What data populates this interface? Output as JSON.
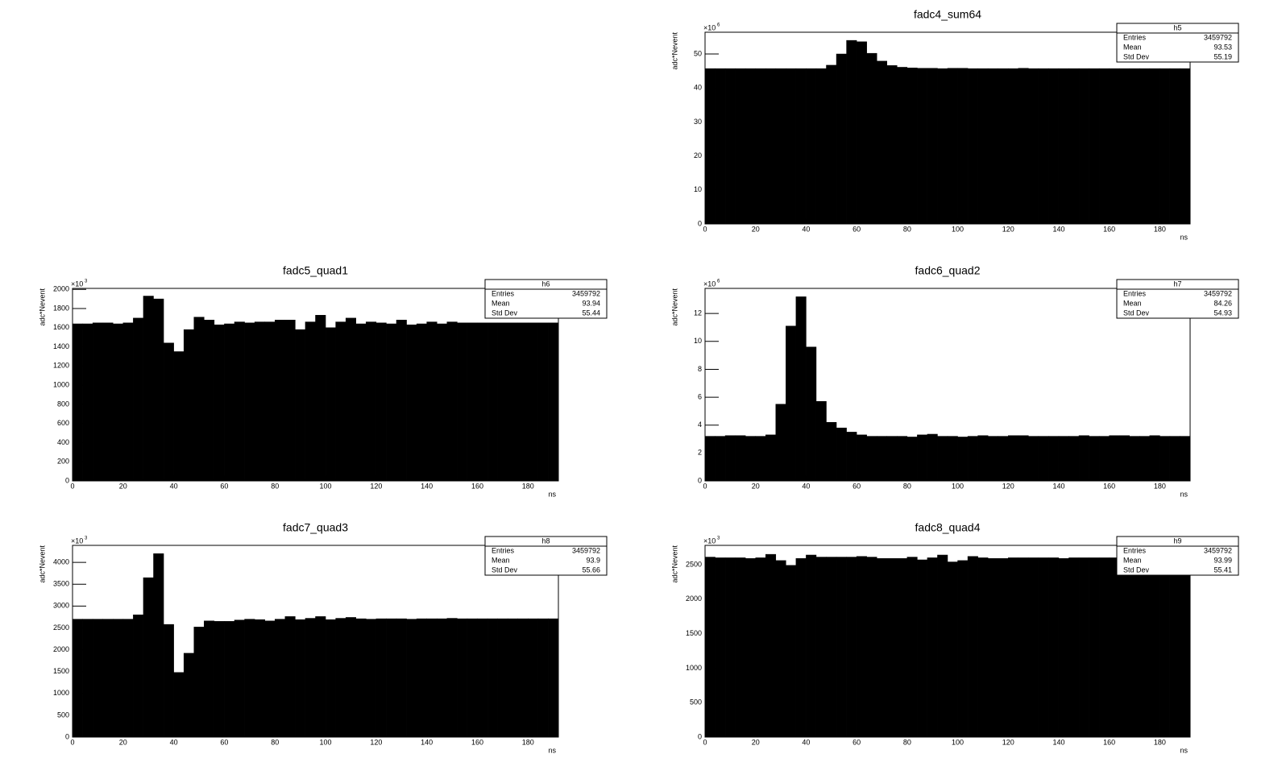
{
  "chart_data": [
    {
      "type": "histogram",
      "title": "fadc4_sum64",
      "xlabel": "ns",
      "ylabel": "adc*Nevent",
      "y_scale": {
        "base": "×10",
        "exponent": "6"
      },
      "color": "#000000",
      "bins": [
        0,
        4,
        8,
        12,
        16,
        20,
        24,
        28,
        32,
        36,
        40,
        44,
        48,
        52,
        56,
        60,
        64,
        68,
        72,
        76,
        80,
        84,
        88,
        92,
        96,
        100,
        104,
        108,
        112,
        116,
        120,
        124,
        128,
        132,
        136,
        140,
        144,
        148,
        152,
        156,
        160,
        164,
        168,
        172,
        176,
        180,
        184,
        188,
        192
      ],
      "values": [
        45.7,
        45.7,
        45.7,
        45.7,
        45.7,
        45.7,
        45.7,
        45.7,
        45.7,
        45.7,
        45.7,
        45.7,
        46.7,
        50.0,
        54.0,
        53.6,
        50.2,
        47.9,
        46.6,
        46.1,
        45.9,
        45.8,
        45.8,
        45.7,
        45.8,
        45.8,
        45.7,
        45.7,
        45.7,
        45.7,
        45.7,
        45.8,
        45.7,
        45.7,
        45.7,
        45.7,
        45.7,
        45.7,
        45.7,
        45.7,
        45.7,
        45.7,
        45.7,
        45.7,
        45.7,
        45.7,
        45.7,
        45.7
      ],
      "xlim": [
        0,
        192
      ],
      "xticks": [
        0,
        20,
        40,
        60,
        80,
        100,
        120,
        140,
        160,
        180
      ],
      "ylim": [
        0,
        56.4
      ],
      "yticks": [
        0,
        10,
        20,
        30,
        40,
        50
      ],
      "stats": {
        "title": "h5",
        "rows": [
          {
            "label": "Entries",
            "value": 3459792
          },
          {
            "label": "Mean",
            "value": 93.53
          },
          {
            "label": "Std Dev",
            "value": 55.19
          }
        ]
      }
    },
    {
      "type": "histogram",
      "title": "fadc5_quad1",
      "xlabel": "ns",
      "ylabel": "adc*Nevent",
      "y_scale": {
        "base": "×10",
        "exponent": "3"
      },
      "color": "#000000",
      "bins": [
        0,
        4,
        8,
        12,
        16,
        20,
        24,
        28,
        32,
        36,
        40,
        44,
        48,
        52,
        56,
        60,
        64,
        68,
        72,
        76,
        80,
        84,
        88,
        92,
        96,
        100,
        104,
        108,
        112,
        116,
        120,
        124,
        128,
        132,
        136,
        140,
        144,
        148,
        152,
        156,
        160,
        164,
        168,
        172,
        176,
        180,
        184,
        188,
        192
      ],
      "values": [
        1640,
        1640,
        1650,
        1650,
        1640,
        1650,
        1700,
        1930,
        1900,
        1440,
        1350,
        1580,
        1710,
        1680,
        1630,
        1640,
        1660,
        1650,
        1660,
        1660,
        1680,
        1680,
        1580,
        1660,
        1730,
        1600,
        1660,
        1700,
        1640,
        1660,
        1650,
        1640,
        1680,
        1630,
        1640,
        1660,
        1640,
        1660,
        1650,
        1650,
        1650,
        1650,
        1650,
        1650,
        1650,
        1650,
        1650,
        1650
      ],
      "xlim": [
        0,
        192
      ],
      "xticks": [
        0,
        20,
        40,
        60,
        80,
        100,
        120,
        140,
        160,
        180
      ],
      "ylim": [
        0,
        2010
      ],
      "yticks": [
        0,
        200,
        400,
        600,
        800,
        1000,
        1200,
        1400,
        1600,
        1800,
        2000
      ],
      "stats": {
        "title": "h6",
        "rows": [
          {
            "label": "Entries",
            "value": 3459792
          },
          {
            "label": "Mean",
            "value": 93.94
          },
          {
            "label": "Std Dev",
            "value": 55.44
          }
        ]
      }
    },
    {
      "type": "histogram",
      "title": "fadc6_quad2",
      "xlabel": "ns",
      "ylabel": "adc*Nevent",
      "y_scale": {
        "base": "×10",
        "exponent": "6"
      },
      "color": "#000000",
      "bins": [
        0,
        4,
        8,
        12,
        16,
        20,
        24,
        28,
        32,
        36,
        40,
        44,
        48,
        52,
        56,
        60,
        64,
        68,
        72,
        76,
        80,
        84,
        88,
        92,
        96,
        100,
        104,
        108,
        112,
        116,
        120,
        124,
        128,
        132,
        136,
        140,
        144,
        148,
        152,
        156,
        160,
        164,
        168,
        172,
        176,
        180,
        184,
        188,
        192
      ],
      "values": [
        3.2,
        3.2,
        3.25,
        3.25,
        3.2,
        3.2,
        3.3,
        5.5,
        11.1,
        13.2,
        9.6,
        5.7,
        4.2,
        3.8,
        3.5,
        3.3,
        3.2,
        3.2,
        3.2,
        3.2,
        3.15,
        3.3,
        3.35,
        3.2,
        3.2,
        3.15,
        3.2,
        3.25,
        3.2,
        3.2,
        3.25,
        3.25,
        3.2,
        3.2,
        3.2,
        3.2,
        3.2,
        3.25,
        3.2,
        3.2,
        3.25,
        3.25,
        3.2,
        3.2,
        3.25,
        3.2,
        3.2,
        3.2
      ],
      "xlim": [
        0,
        192
      ],
      "xticks": [
        0,
        20,
        40,
        60,
        80,
        100,
        120,
        140,
        160,
        180
      ],
      "ylim": [
        0,
        13.8
      ],
      "yticks": [
        0,
        2,
        4,
        6,
        8,
        10,
        12
      ],
      "stats": {
        "title": "h7",
        "rows": [
          {
            "label": "Entries",
            "value": 3459792
          },
          {
            "label": "Mean",
            "value": 84.26
          },
          {
            "label": "Std Dev",
            "value": 54.93
          }
        ]
      }
    },
    {
      "type": "histogram",
      "title": "fadc7_quad3",
      "xlabel": "ns",
      "ylabel": "adc*Nevent",
      "y_scale": {
        "base": "×10",
        "exponent": "3"
      },
      "color": "#000000",
      "bins": [
        0,
        4,
        8,
        12,
        16,
        20,
        24,
        28,
        32,
        36,
        40,
        44,
        48,
        52,
        56,
        60,
        64,
        68,
        72,
        76,
        80,
        84,
        88,
        92,
        96,
        100,
        104,
        108,
        112,
        116,
        120,
        124,
        128,
        132,
        136,
        140,
        144,
        148,
        152,
        156,
        160,
        164,
        168,
        172,
        176,
        180,
        184,
        188,
        192
      ],
      "values": [
        2700,
        2700,
        2700,
        2700,
        2700,
        2700,
        2800,
        3650,
        4200,
        2580,
        1480,
        1920,
        2520,
        2660,
        2650,
        2650,
        2680,
        2700,
        2690,
        2660,
        2700,
        2760,
        2690,
        2720,
        2760,
        2690,
        2720,
        2740,
        2710,
        2700,
        2710,
        2710,
        2710,
        2700,
        2710,
        2710,
        2710,
        2720,
        2710,
        2710,
        2710,
        2710,
        2710,
        2710,
        2710,
        2710,
        2710,
        2710
      ],
      "xlim": [
        0,
        192
      ],
      "xticks": [
        0,
        20,
        40,
        60,
        80,
        100,
        120,
        140,
        160,
        180
      ],
      "ylim": [
        0,
        4390
      ],
      "yticks": [
        0,
        500,
        1000,
        1500,
        2000,
        2500,
        3000,
        3500,
        4000
      ],
      "stats": {
        "title": "h8",
        "rows": [
          {
            "label": "Entries",
            "value": 3459792
          },
          {
            "label": "Mean",
            "value": 93.9
          },
          {
            "label": "Std Dev",
            "value": 55.66
          }
        ]
      }
    },
    {
      "type": "histogram",
      "title": "fadc8_quad4",
      "xlabel": "ns",
      "ylabel": "adc*Nevent",
      "y_scale": {
        "base": "×10",
        "exponent": "3"
      },
      "color": "#000000",
      "bins": [
        0,
        4,
        8,
        12,
        16,
        20,
        24,
        28,
        32,
        36,
        40,
        44,
        48,
        52,
        56,
        60,
        64,
        68,
        72,
        76,
        80,
        84,
        88,
        92,
        96,
        100,
        104,
        108,
        112,
        116,
        120,
        124,
        128,
        132,
        136,
        140,
        144,
        148,
        152,
        156,
        160,
        164,
        168,
        172,
        176,
        180,
        184,
        188,
        192
      ],
      "values": [
        2610,
        2600,
        2600,
        2600,
        2590,
        2600,
        2650,
        2560,
        2490,
        2590,
        2640,
        2610,
        2610,
        2610,
        2610,
        2620,
        2610,
        2590,
        2590,
        2590,
        2610,
        2570,
        2600,
        2640,
        2540,
        2560,
        2620,
        2600,
        2590,
        2590,
        2600,
        2600,
        2600,
        2600,
        2600,
        2590,
        2600,
        2600,
        2600,
        2600,
        2600,
        2600,
        2600,
        2600,
        2600,
        2600,
        2600,
        2600
      ],
      "xlim": [
        0,
        192
      ],
      "xticks": [
        0,
        20,
        40,
        60,
        80,
        100,
        120,
        140,
        160,
        180
      ],
      "ylim": [
        0,
        2780
      ],
      "yticks": [
        0,
        500,
        1000,
        1500,
        2000,
        2500
      ],
      "stats": {
        "title": "h9",
        "rows": [
          {
            "label": "Entries",
            "value": 3459792
          },
          {
            "label": "Mean",
            "value": 93.99
          },
          {
            "label": "Std Dev",
            "value": 55.41
          }
        ]
      }
    }
  ]
}
